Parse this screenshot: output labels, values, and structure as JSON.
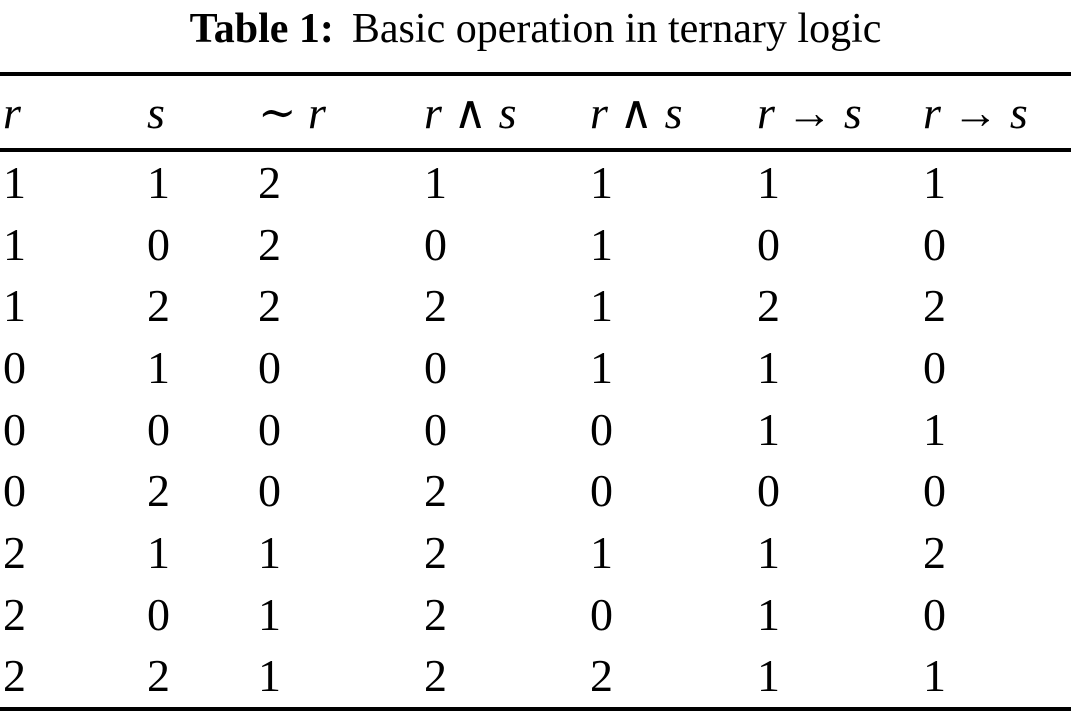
{
  "page": {
    "background_color": "#ffffff",
    "text_color": "#000000"
  },
  "caption": {
    "label": "Table 1:",
    "text": "Basic operation in ternary logic"
  },
  "table": {
    "headers": [
      "r",
      "s",
      "∼ r",
      "r ∧ s",
      "r ∧ s",
      "r → s",
      "r → s"
    ],
    "rows": [
      [
        "1",
        "1",
        "2",
        "1",
        "1",
        "1",
        "1"
      ],
      [
        "1",
        "0",
        "2",
        "0",
        "1",
        "0",
        "0"
      ],
      [
        "1",
        "2",
        "2",
        "2",
        "1",
        "2",
        "2"
      ],
      [
        "0",
        "1",
        "0",
        "0",
        "1",
        "1",
        "0"
      ],
      [
        "0",
        "0",
        "0",
        "0",
        "0",
        "1",
        "1"
      ],
      [
        "0",
        "2",
        "0",
        "2",
        "0",
        "0",
        "0"
      ],
      [
        "2",
        "1",
        "1",
        "2",
        "1",
        "1",
        "2"
      ],
      [
        "2",
        "0",
        "1",
        "2",
        "0",
        "1",
        "0"
      ],
      [
        "2",
        "2",
        "1",
        "2",
        "2",
        "1",
        "1"
      ]
    ]
  }
}
